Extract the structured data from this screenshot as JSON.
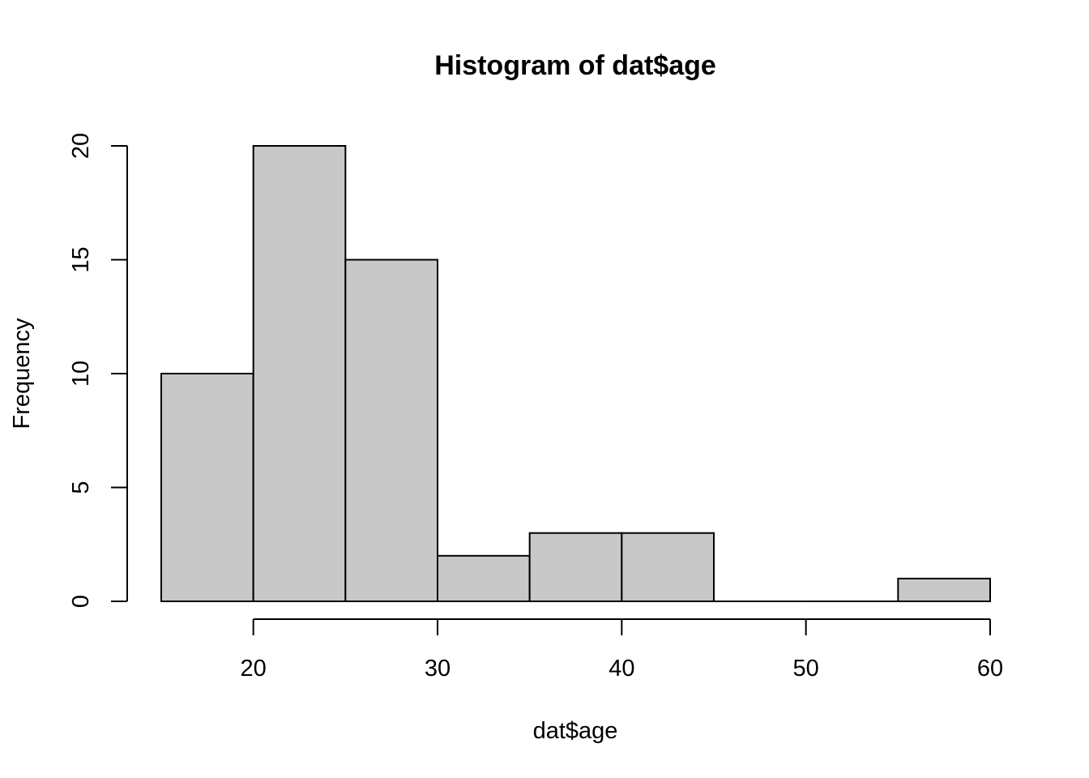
{
  "chart_data": {
    "type": "bar",
    "title": "Histogram of dat$age",
    "xlabel": "dat$age",
    "ylabel": "Frequency",
    "bins": [
      {
        "from": 15,
        "to": 20,
        "count": 10
      },
      {
        "from": 20,
        "to": 25,
        "count": 20
      },
      {
        "from": 25,
        "to": 30,
        "count": 15
      },
      {
        "from": 30,
        "to": 35,
        "count": 2
      },
      {
        "from": 35,
        "to": 40,
        "count": 3
      },
      {
        "from": 40,
        "to": 45,
        "count": 3
      },
      {
        "from": 45,
        "to": 50,
        "count": 0
      },
      {
        "from": 50,
        "to": 55,
        "count": 0
      },
      {
        "from": 55,
        "to": 60,
        "count": 1
      }
    ],
    "x_ticks": [
      20,
      30,
      40,
      50,
      60
    ],
    "y_ticks": [
      0,
      5,
      10,
      15,
      20
    ],
    "xlim": [
      15,
      60
    ],
    "ylim": [
      0,
      20
    ],
    "bar_fill": "#c8c8c8",
    "bar_stroke": "#000000",
    "grid": false
  }
}
